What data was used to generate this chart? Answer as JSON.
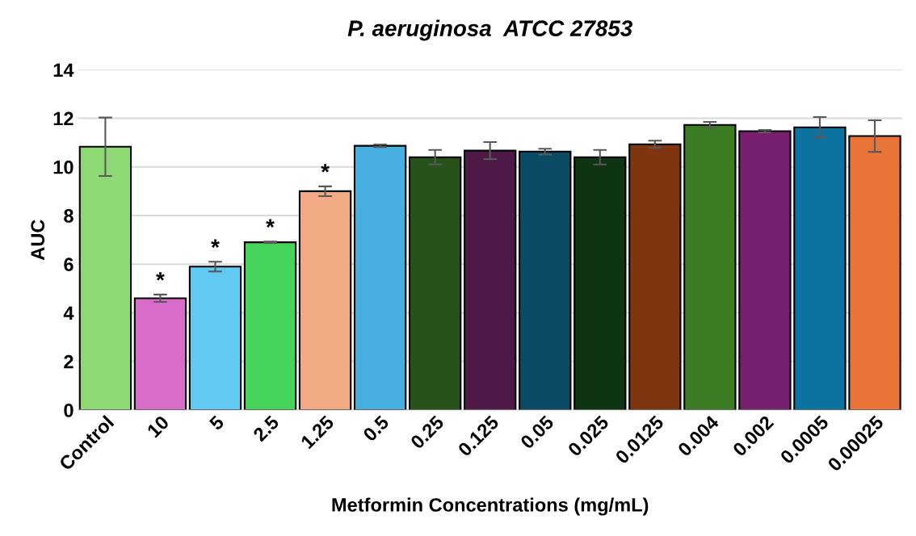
{
  "chart_data": {
    "type": "bar",
    "title": "P. aeruginosa  ATCC 27853",
    "xlabel": "Metformin Concentrations (mg/mL)",
    "ylabel": "AUC",
    "categories": [
      "Control",
      "10",
      "5",
      "2.5",
      "1.25",
      "0.5",
      "0.25",
      "0.125",
      "0.05",
      "0.025",
      "0.0125",
      "0.004",
      "0.002",
      "0.0005",
      "0.00025"
    ],
    "values": [
      10.83,
      4.6,
      5.9,
      6.9,
      9.0,
      10.87,
      10.4,
      10.67,
      10.63,
      10.4,
      10.93,
      11.73,
      11.47,
      11.63,
      11.27
    ],
    "errors": [
      1.2,
      0.15,
      0.2,
      0.03,
      0.2,
      0.05,
      0.3,
      0.35,
      0.12,
      0.3,
      0.15,
      0.12,
      0.05,
      0.42,
      0.65
    ],
    "colors": [
      "#8fd974",
      "#d76dc9",
      "#62caf2",
      "#46d35a",
      "#f1aa84",
      "#47afe0",
      "#275219",
      "#4f1947",
      "#0a4c66",
      "#0e3413",
      "#7f3510",
      "#3c7c25",
      "#772070",
      "#0c73a0",
      "#e87437"
    ],
    "ylim": [
      0,
      14
    ],
    "yticks": [
      0,
      2,
      4,
      6,
      8,
      10,
      12,
      14
    ],
    "grid": "y",
    "annotations": [
      {
        "text": "*",
        "x": "10",
        "y": 4.75
      },
      {
        "text": "*",
        "x": "5",
        "y": 6.1
      },
      {
        "text": "*",
        "x": "2.5",
        "y": 6.93
      },
      {
        "text": "*",
        "x": "1.25",
        "y": 9.2
      }
    ]
  }
}
